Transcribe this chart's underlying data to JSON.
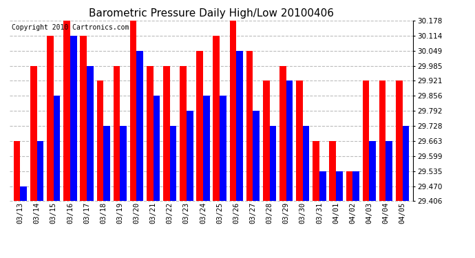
{
  "title": "Barometric Pressure Daily High/Low 20100406",
  "copyright": "Copyright 2010 Cartronics.com",
  "dates": [
    "03/13",
    "03/14",
    "03/15",
    "03/16",
    "03/17",
    "03/18",
    "03/19",
    "03/20",
    "03/21",
    "03/22",
    "03/23",
    "03/24",
    "03/25",
    "03/26",
    "03/27",
    "03/28",
    "03/29",
    "03/30",
    "03/31",
    "04/01",
    "04/02",
    "04/03",
    "04/04",
    "04/05"
  ],
  "highs": [
    29.663,
    29.985,
    30.114,
    30.178,
    30.114,
    29.921,
    29.985,
    30.178,
    29.985,
    29.985,
    29.985,
    30.049,
    30.114,
    30.178,
    30.049,
    29.921,
    29.985,
    29.921,
    29.663,
    29.663,
    29.535,
    29.921,
    29.921,
    29.921
  ],
  "lows": [
    29.47,
    29.663,
    29.856,
    30.114,
    29.985,
    29.728,
    29.728,
    30.049,
    29.856,
    29.728,
    29.792,
    29.856,
    29.856,
    30.049,
    29.792,
    29.728,
    29.921,
    29.728,
    29.535,
    29.535,
    29.535,
    29.663,
    29.663,
    29.728
  ],
  "high_color": "#FF0000",
  "low_color": "#0000FF",
  "background_color": "#FFFFFF",
  "grid_color": "#BBBBBB",
  "ymin": 29.406,
  "ymax": 30.178,
  "yticks": [
    29.406,
    29.47,
    29.535,
    29.599,
    29.663,
    29.728,
    29.792,
    29.856,
    29.921,
    29.985,
    30.049,
    30.114,
    30.178
  ],
  "title_fontsize": 11,
  "copyright_fontsize": 7,
  "tick_fontsize": 7.5,
  "bar_width": 0.4
}
